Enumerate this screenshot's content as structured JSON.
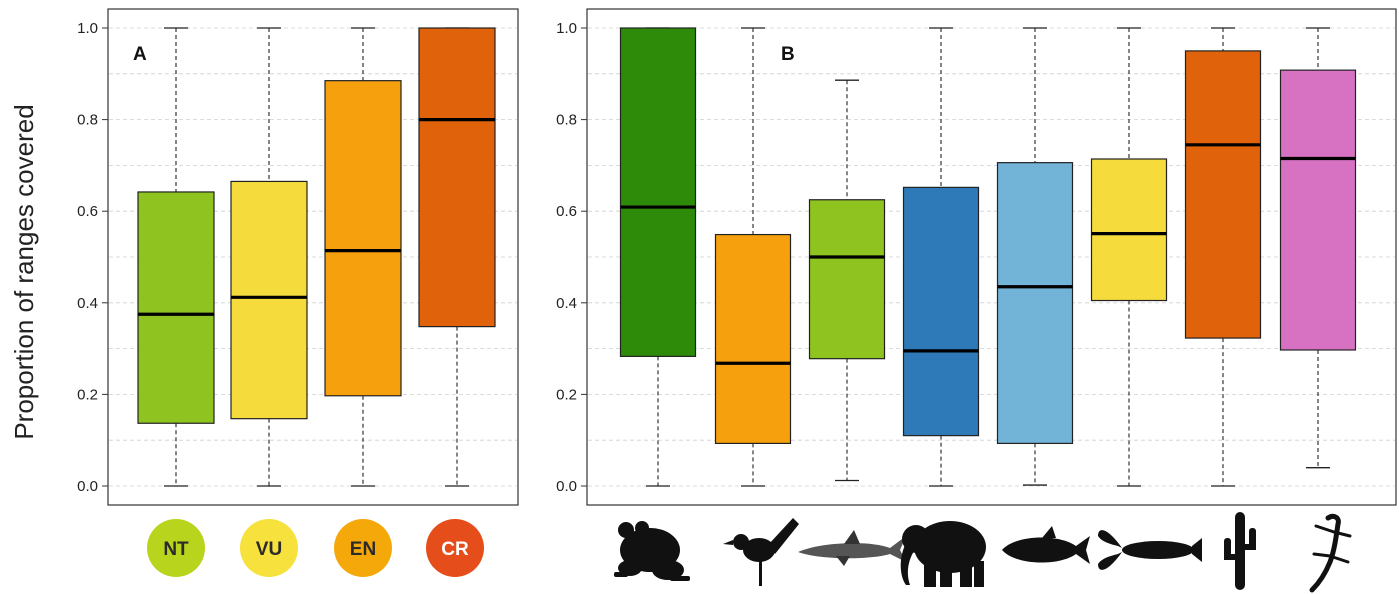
{
  "ylabel": "Proportion of ranges covered",
  "chart_data": [
    {
      "type": "box",
      "panel": "A",
      "ylabel": "Proportion of ranges covered",
      "ylim": [
        0,
        1
      ],
      "yticks": [
        "0.0",
        "0.2",
        "0.4",
        "0.6",
        "0.8",
        "1.0"
      ],
      "grid": true,
      "categories": [
        "NT",
        "VU",
        "EN",
        "CR"
      ],
      "boxes": [
        {
          "label": "NT",
          "min": 0.0,
          "q1": 0.137,
          "median": 0.375,
          "q3": 0.642,
          "max": 1.0,
          "color": "#8fc31f"
        },
        {
          "label": "VU",
          "min": 0.0,
          "q1": 0.147,
          "median": 0.412,
          "q3": 0.665,
          "max": 1.0,
          "color": "#f5dc3c"
        },
        {
          "label": "EN",
          "min": 0.0,
          "q1": 0.197,
          "median": 0.514,
          "q3": 0.885,
          "max": 1.0,
          "color": "#f5a00c"
        },
        {
          "label": "CR",
          "min": 0.0,
          "q1": 0.348,
          "median": 0.8,
          "q3": 1.0,
          "max": 1.0,
          "color": "#e0620a"
        }
      ],
      "badges": [
        {
          "label": "NT",
          "fill": "#b9d41c",
          "text_color": "#2b2b2b"
        },
        {
          "label": "VU",
          "fill": "#f7e13c",
          "text_color": "#2b2b2b"
        },
        {
          "label": "EN",
          "fill": "#f5a80a",
          "text_color": "#2b2b2b"
        },
        {
          "label": "CR",
          "fill": "#e54d1a",
          "text_color": "#ffffff"
        }
      ]
    },
    {
      "type": "box",
      "panel": "B",
      "ylim": [
        0,
        1
      ],
      "yticks": [
        "0.0",
        "0.2",
        "0.4",
        "0.6",
        "0.8",
        "1.0"
      ],
      "grid": true,
      "categories": [
        "frog-icon",
        "bird-icon",
        "shark-icon",
        "elephant-icon",
        "tuna-icon",
        "lobster-icon",
        "cactus-icon",
        "lizard-icon"
      ],
      "boxes": [
        {
          "label": "frog-icon",
          "min": 0.0,
          "q1": 0.283,
          "median": 0.609,
          "q3": 1.0,
          "max": 1.0,
          "color": "#2e8b0a"
        },
        {
          "label": "bird-icon",
          "min": 0.0,
          "q1": 0.093,
          "median": 0.268,
          "q3": 0.549,
          "max": 1.0,
          "color": "#f5a00c"
        },
        {
          "label": "shark-icon",
          "min": 0.012,
          "q1": 0.278,
          "median": 0.5,
          "q3": 0.625,
          "max": 0.886,
          "color": "#8fc31f"
        },
        {
          "label": "elephant-icon",
          "min": 0.0,
          "q1": 0.11,
          "median": 0.295,
          "q3": 0.652,
          "max": 1.0,
          "color": "#2e7ab8"
        },
        {
          "label": "tuna-icon",
          "min": 0.002,
          "q1": 0.093,
          "median": 0.435,
          "q3": 0.706,
          "max": 1.0,
          "color": "#72b3d8"
        },
        {
          "label": "lobster-icon",
          "min": 0.0,
          "q1": 0.405,
          "median": 0.551,
          "q3": 0.714,
          "max": 1.0,
          "color": "#f5dc3c"
        },
        {
          "label": "cactus-icon",
          "min": 0.0,
          "q1": 0.323,
          "median": 0.745,
          "q3": 0.95,
          "max": 1.0,
          "color": "#e0620a"
        },
        {
          "label": "lizard-icon",
          "min": 0.04,
          "q1": 0.297,
          "median": 0.715,
          "q3": 0.908,
          "max": 1.0,
          "color": "#d772c2"
        }
      ]
    }
  ]
}
